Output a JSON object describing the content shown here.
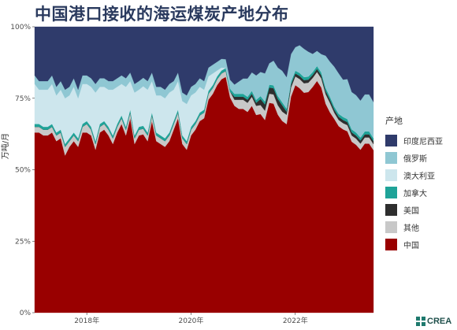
{
  "chart_data": {
    "type": "area",
    "stacked": true,
    "normalized": true,
    "title": "中国港口接收的海运煤炭产地分布",
    "ylabel": "万吨/月",
    "ylim": [
      0,
      100
    ],
    "y_ticks": [
      "0%",
      "25%",
      "50%",
      "75%",
      "100%"
    ],
    "x_ticks": [
      "2018年",
      "2020年",
      "2022年"
    ],
    "x_start": "2017-01",
    "x_end": "2023-07",
    "legend_title": "产地",
    "legend_position": "right",
    "grid": false,
    "series": [
      {
        "name": "中国",
        "color": "#990000",
        "values": [
          63,
          63,
          62,
          62,
          63,
          60,
          61,
          55,
          58,
          60,
          58,
          63,
          63,
          62,
          57,
          63,
          64,
          62,
          59,
          63,
          66,
          62,
          68,
          59,
          62,
          63,
          60,
          67,
          60,
          59,
          58,
          60,
          64,
          68,
          59,
          57,
          62,
          64,
          67,
          68,
          73,
          75,
          78,
          80,
          80,
          73,
          68,
          67,
          67,
          66,
          68,
          65,
          66,
          62,
          69,
          68,
          63,
          61,
          60,
          71,
          78,
          73,
          70,
          71,
          75,
          77,
          74,
          65,
          63,
          63,
          60,
          59,
          59,
          55,
          54,
          53,
          55,
          55,
          54,
          54,
          51
        ]
      },
      {
        "name": "其他",
        "color": "#c8c8c8",
        "values": [
          2,
          2,
          2,
          2,
          2,
          2,
          2,
          3,
          2,
          2,
          2,
          2,
          3,
          2,
          2,
          2,
          2,
          2,
          2,
          2,
          2,
          2,
          2,
          2,
          2,
          2,
          2,
          2,
          2,
          2,
          2,
          2,
          2,
          2,
          2,
          2,
          2,
          2,
          2,
          2,
          2,
          2,
          2,
          2,
          2,
          2,
          2,
          3,
          3,
          3,
          3,
          3,
          3,
          3,
          3,
          3,
          3,
          3,
          3,
          3,
          3,
          3,
          3,
          3,
          3,
          3,
          3,
          3,
          3,
          2,
          2,
          2,
          2,
          2,
          2,
          2,
          2,
          2,
          2,
          2,
          2
        ]
      },
      {
        "name": "美国",
        "color": "#2e2e2e",
        "values": [
          0,
          0,
          0,
          0,
          0,
          0,
          0,
          0,
          0,
          0,
          0,
          0,
          0,
          0,
          0,
          0,
          0,
          0,
          0,
          0,
          0,
          0,
          0,
          0,
          0,
          0,
          0,
          0,
          0,
          0,
          0,
          0,
          0,
          0,
          0,
          0,
          0,
          0,
          0,
          0,
          0,
          0,
          0,
          0,
          0,
          0,
          1,
          1,
          1,
          1,
          1,
          1,
          2,
          2,
          2,
          2,
          2,
          2,
          1,
          1,
          1,
          1,
          1,
          1,
          1,
          1,
          1,
          1,
          1,
          1,
          1,
          1,
          1,
          1,
          1,
          1,
          1,
          1,
          1,
          1,
          1
        ]
      },
      {
        "name": "加拿大",
        "color": "#1fa398",
        "values": [
          1,
          1,
          1,
          1,
          1,
          1,
          1,
          1,
          1,
          1,
          1,
          1,
          1,
          1,
          1,
          1,
          1,
          1,
          1,
          1,
          1,
          1,
          1,
          1,
          1,
          1,
          1,
          1,
          1,
          1,
          1,
          1,
          1,
          1,
          1,
          1,
          1,
          1,
          1,
          1,
          1,
          1,
          1,
          1,
          1,
          1,
          1,
          1,
          1,
          1,
          1,
          1,
          1,
          1,
          1,
          1,
          1,
          1,
          1,
          1,
          1,
          1,
          1,
          1,
          1,
          1,
          1,
          1,
          1,
          1,
          1,
          1,
          1,
          1,
          1,
          1,
          1,
          1,
          1,
          1,
          1
        ]
      },
      {
        "name": "澳大利亚",
        "color": "#cde6ed",
        "values": [
          14,
          12,
          13,
          13,
          14,
          13,
          14,
          16,
          15,
          16,
          14,
          14,
          13,
          14,
          17,
          13,
          12,
          13,
          16,
          13,
          11,
          14,
          10,
          15,
          13,
          14,
          15,
          11,
          13,
          14,
          14,
          14,
          11,
          10,
          12,
          13,
          11,
          10,
          9,
          7,
          5,
          4,
          2,
          1,
          0,
          0,
          0,
          0,
          0,
          0,
          0,
          0,
          0,
          0,
          0,
          0,
          0,
          0,
          0,
          0,
          0,
          0,
          0,
          0,
          0,
          0,
          0,
          0,
          0,
          0,
          0,
          0,
          0,
          0,
          0,
          0,
          0,
          0,
          0,
          0,
          0
        ]
      },
      {
        "name": "俄罗斯",
        "color": "#8fc7d3",
        "values": [
          3,
          3,
          3,
          3,
          3,
          3,
          3,
          3,
          3,
          3,
          3,
          3,
          3,
          3,
          3,
          3,
          3,
          3,
          3,
          3,
          3,
          3,
          3,
          3,
          3,
          3,
          3,
          3,
          3,
          3,
          3,
          3,
          3,
          3,
          3,
          3,
          3,
          3,
          3,
          3,
          3,
          3,
          3,
          3,
          3,
          3,
          3,
          4,
          5,
          6,
          6,
          8,
          8,
          9,
          7,
          8,
          9,
          10,
          10,
          9,
          8,
          9,
          9,
          8,
          6,
          5,
          6,
          10,
          11,
          13,
          13,
          12,
          13,
          12,
          12,
          12,
          12,
          12,
          12,
          12,
          13
        ]
      },
      {
        "name": "印度尼西亚",
        "color": "#2f3b6b",
        "values": [
          17,
          19,
          19,
          19,
          17,
          21,
          19,
          22,
          21,
          18,
          22,
          17,
          17,
          18,
          20,
          18,
          18,
          19,
          19,
          18,
          17,
          18,
          16,
          20,
          19,
          18,
          19,
          16,
          21,
          21,
          22,
          20,
          19,
          16,
          23,
          24,
          21,
          20,
          18,
          19,
          14,
          13,
          12,
          11,
          11,
          18,
          19,
          18,
          17,
          17,
          15,
          16,
          15,
          15,
          12,
          11,
          13,
          14,
          16,
          9,
          7,
          6,
          7,
          8,
          9,
          8,
          9,
          9,
          11,
          13,
          15,
          17,
          17,
          21,
          22,
          24,
          22,
          22,
          25,
          26,
          29
        ]
      }
    ]
  },
  "branding": {
    "text": "CREA",
    "icon": "crea-logo-icon"
  }
}
